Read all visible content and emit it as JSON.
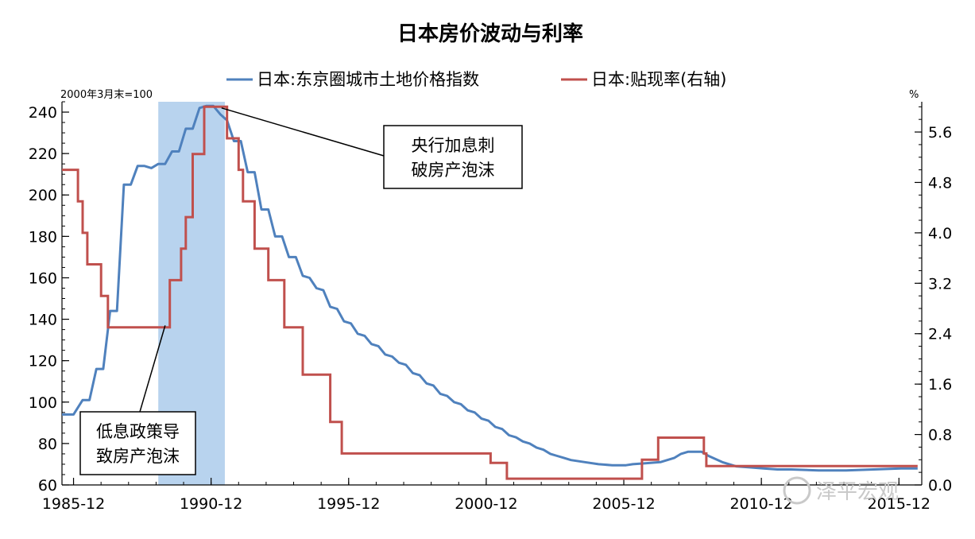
{
  "chart_data": {
    "type": "line",
    "title": "日本房价波动与利率",
    "left_axis_unit": "2000年3月末=100",
    "right_axis_unit": "%",
    "ylim": [
      60,
      245
    ],
    "ylim_right": [
      0.0,
      6.08
    ],
    "yticks": [
      60,
      80,
      100,
      120,
      140,
      160,
      180,
      200,
      220,
      240
    ],
    "yticks_right": [
      "0.0",
      "0.8",
      "1.6",
      "2.4",
      "3.2",
      "4.0",
      "4.8",
      "5.6"
    ],
    "xlim": [
      1985.5,
      2016.75
    ],
    "xtick_values": [
      1985.92,
      1990.92,
      1995.92,
      2000.92,
      2005.92,
      2010.92,
      2015.92
    ],
    "xtick_labels": [
      "1985-12",
      "1990-12",
      "1995-12",
      "2000-12",
      "2005-12",
      "2010-12",
      "2015-12"
    ],
    "legend_position": "top-center",
    "shaded_period": [
      1989.0,
      1991.42
    ],
    "series": [
      {
        "name": "日本:东京圈城市土地价格指数",
        "color": "#4f81bd",
        "axis": "left",
        "points": [
          [
            1985.5,
            94
          ],
          [
            1985.92,
            94
          ],
          [
            1986.25,
            101
          ],
          [
            1986.5,
            101
          ],
          [
            1986.75,
            116
          ],
          [
            1987.0,
            116
          ],
          [
            1987.25,
            144
          ],
          [
            1987.5,
            144
          ],
          [
            1987.75,
            205
          ],
          [
            1988.0,
            205
          ],
          [
            1988.25,
            214
          ],
          [
            1988.5,
            214
          ],
          [
            1988.75,
            213
          ],
          [
            1989.0,
            215
          ],
          [
            1989.25,
            215
          ],
          [
            1989.5,
            221
          ],
          [
            1989.75,
            221
          ],
          [
            1990.0,
            232
          ],
          [
            1990.25,
            232
          ],
          [
            1990.5,
            242
          ],
          [
            1990.75,
            243
          ],
          [
            1991.0,
            243
          ],
          [
            1991.25,
            239
          ],
          [
            1991.5,
            236
          ],
          [
            1991.75,
            226
          ],
          [
            1992.0,
            226
          ],
          [
            1992.25,
            211
          ],
          [
            1992.5,
            211
          ],
          [
            1992.75,
            193
          ],
          [
            1993.0,
            193
          ],
          [
            1993.25,
            180
          ],
          [
            1993.5,
            180
          ],
          [
            1993.75,
            170
          ],
          [
            1994.0,
            170
          ],
          [
            1994.25,
            161
          ],
          [
            1994.5,
            160
          ],
          [
            1994.75,
            155
          ],
          [
            1995.0,
            154
          ],
          [
            1995.25,
            146
          ],
          [
            1995.5,
            145
          ],
          [
            1995.75,
            139
          ],
          [
            1996.0,
            138
          ],
          [
            1996.25,
            133
          ],
          [
            1996.5,
            132
          ],
          [
            1996.75,
            128
          ],
          [
            1997.0,
            127
          ],
          [
            1997.25,
            123
          ],
          [
            1997.5,
            122
          ],
          [
            1997.75,
            119
          ],
          [
            1998.0,
            118
          ],
          [
            1998.25,
            114
          ],
          [
            1998.5,
            113
          ],
          [
            1998.75,
            109
          ],
          [
            1999.0,
            108
          ],
          [
            1999.25,
            104
          ],
          [
            1999.5,
            103
          ],
          [
            1999.75,
            100
          ],
          [
            2000.0,
            99
          ],
          [
            2000.25,
            96
          ],
          [
            2000.5,
            95
          ],
          [
            2000.75,
            92
          ],
          [
            2001.0,
            91
          ],
          [
            2001.25,
            88
          ],
          [
            2001.5,
            87
          ],
          [
            2001.75,
            84
          ],
          [
            2002.0,
            83
          ],
          [
            2002.25,
            81
          ],
          [
            2002.5,
            80
          ],
          [
            2002.75,
            78
          ],
          [
            2003.0,
            77
          ],
          [
            2003.25,
            75
          ],
          [
            2003.5,
            74
          ],
          [
            2003.75,
            73
          ],
          [
            2004.0,
            72
          ],
          [
            2004.5,
            71
          ],
          [
            2005.0,
            70
          ],
          [
            2005.5,
            69.5
          ],
          [
            2006.0,
            69.5
          ],
          [
            2006.25,
            70
          ],
          [
            2006.75,
            70.5
          ],
          [
            2007.25,
            71
          ],
          [
            2007.75,
            73
          ],
          [
            2008.0,
            75
          ],
          [
            2008.25,
            76
          ],
          [
            2008.75,
            76
          ],
          [
            2009.0,
            74
          ],
          [
            2009.5,
            71
          ],
          [
            2010.0,
            69
          ],
          [
            2010.5,
            68.5
          ],
          [
            2011.0,
            68
          ],
          [
            2011.5,
            67.5
          ],
          [
            2012.0,
            67.5
          ],
          [
            2013.0,
            67
          ],
          [
            2014.0,
            67
          ],
          [
            2015.0,
            67.5
          ],
          [
            2016.0,
            68
          ],
          [
            2016.6,
            68
          ]
        ]
      },
      {
        "name": "日本:贴现率(右轴)",
        "color": "#c0504d",
        "axis": "right",
        "steps": [
          [
            1985.5,
            5.0
          ],
          [
            1986.08,
            4.5
          ],
          [
            1986.25,
            4.0
          ],
          [
            1986.42,
            3.5
          ],
          [
            1986.92,
            3.0
          ],
          [
            1987.17,
            2.5
          ],
          [
            1989.42,
            3.25
          ],
          [
            1989.83,
            3.75
          ],
          [
            1990.0,
            4.25
          ],
          [
            1990.25,
            5.25
          ],
          [
            1990.67,
            6.0
          ],
          [
            1991.5,
            5.5
          ],
          [
            1991.92,
            5.0
          ],
          [
            1992.08,
            4.5
          ],
          [
            1992.5,
            3.75
          ],
          [
            1993.0,
            3.25
          ],
          [
            1993.58,
            2.5
          ],
          [
            1994.25,
            1.75
          ],
          [
            1995.25,
            1.0
          ],
          [
            1995.67,
            0.5
          ],
          [
            2001.08,
            0.35
          ],
          [
            2001.67,
            0.1
          ],
          [
            2006.58,
            0.4
          ],
          [
            2007.17,
            0.75
          ],
          [
            2008.83,
            0.5
          ],
          [
            2008.92,
            0.3
          ],
          [
            2016.6,
            0.3
          ]
        ]
      }
    ],
    "annotations": [
      {
        "lines": [
          "央行加息刺",
          "破房产泡沫"
        ],
        "points_to": [
          1991.3,
          242
        ]
      },
      {
        "lines": [
          "低息政策导",
          "致房产泡沫"
        ],
        "points_to": [
          1989.25,
          137
        ]
      }
    ]
  },
  "watermark": "泽平宏观",
  "colors": {
    "shade": "#b8d3ee",
    "axis": "#000000"
  }
}
